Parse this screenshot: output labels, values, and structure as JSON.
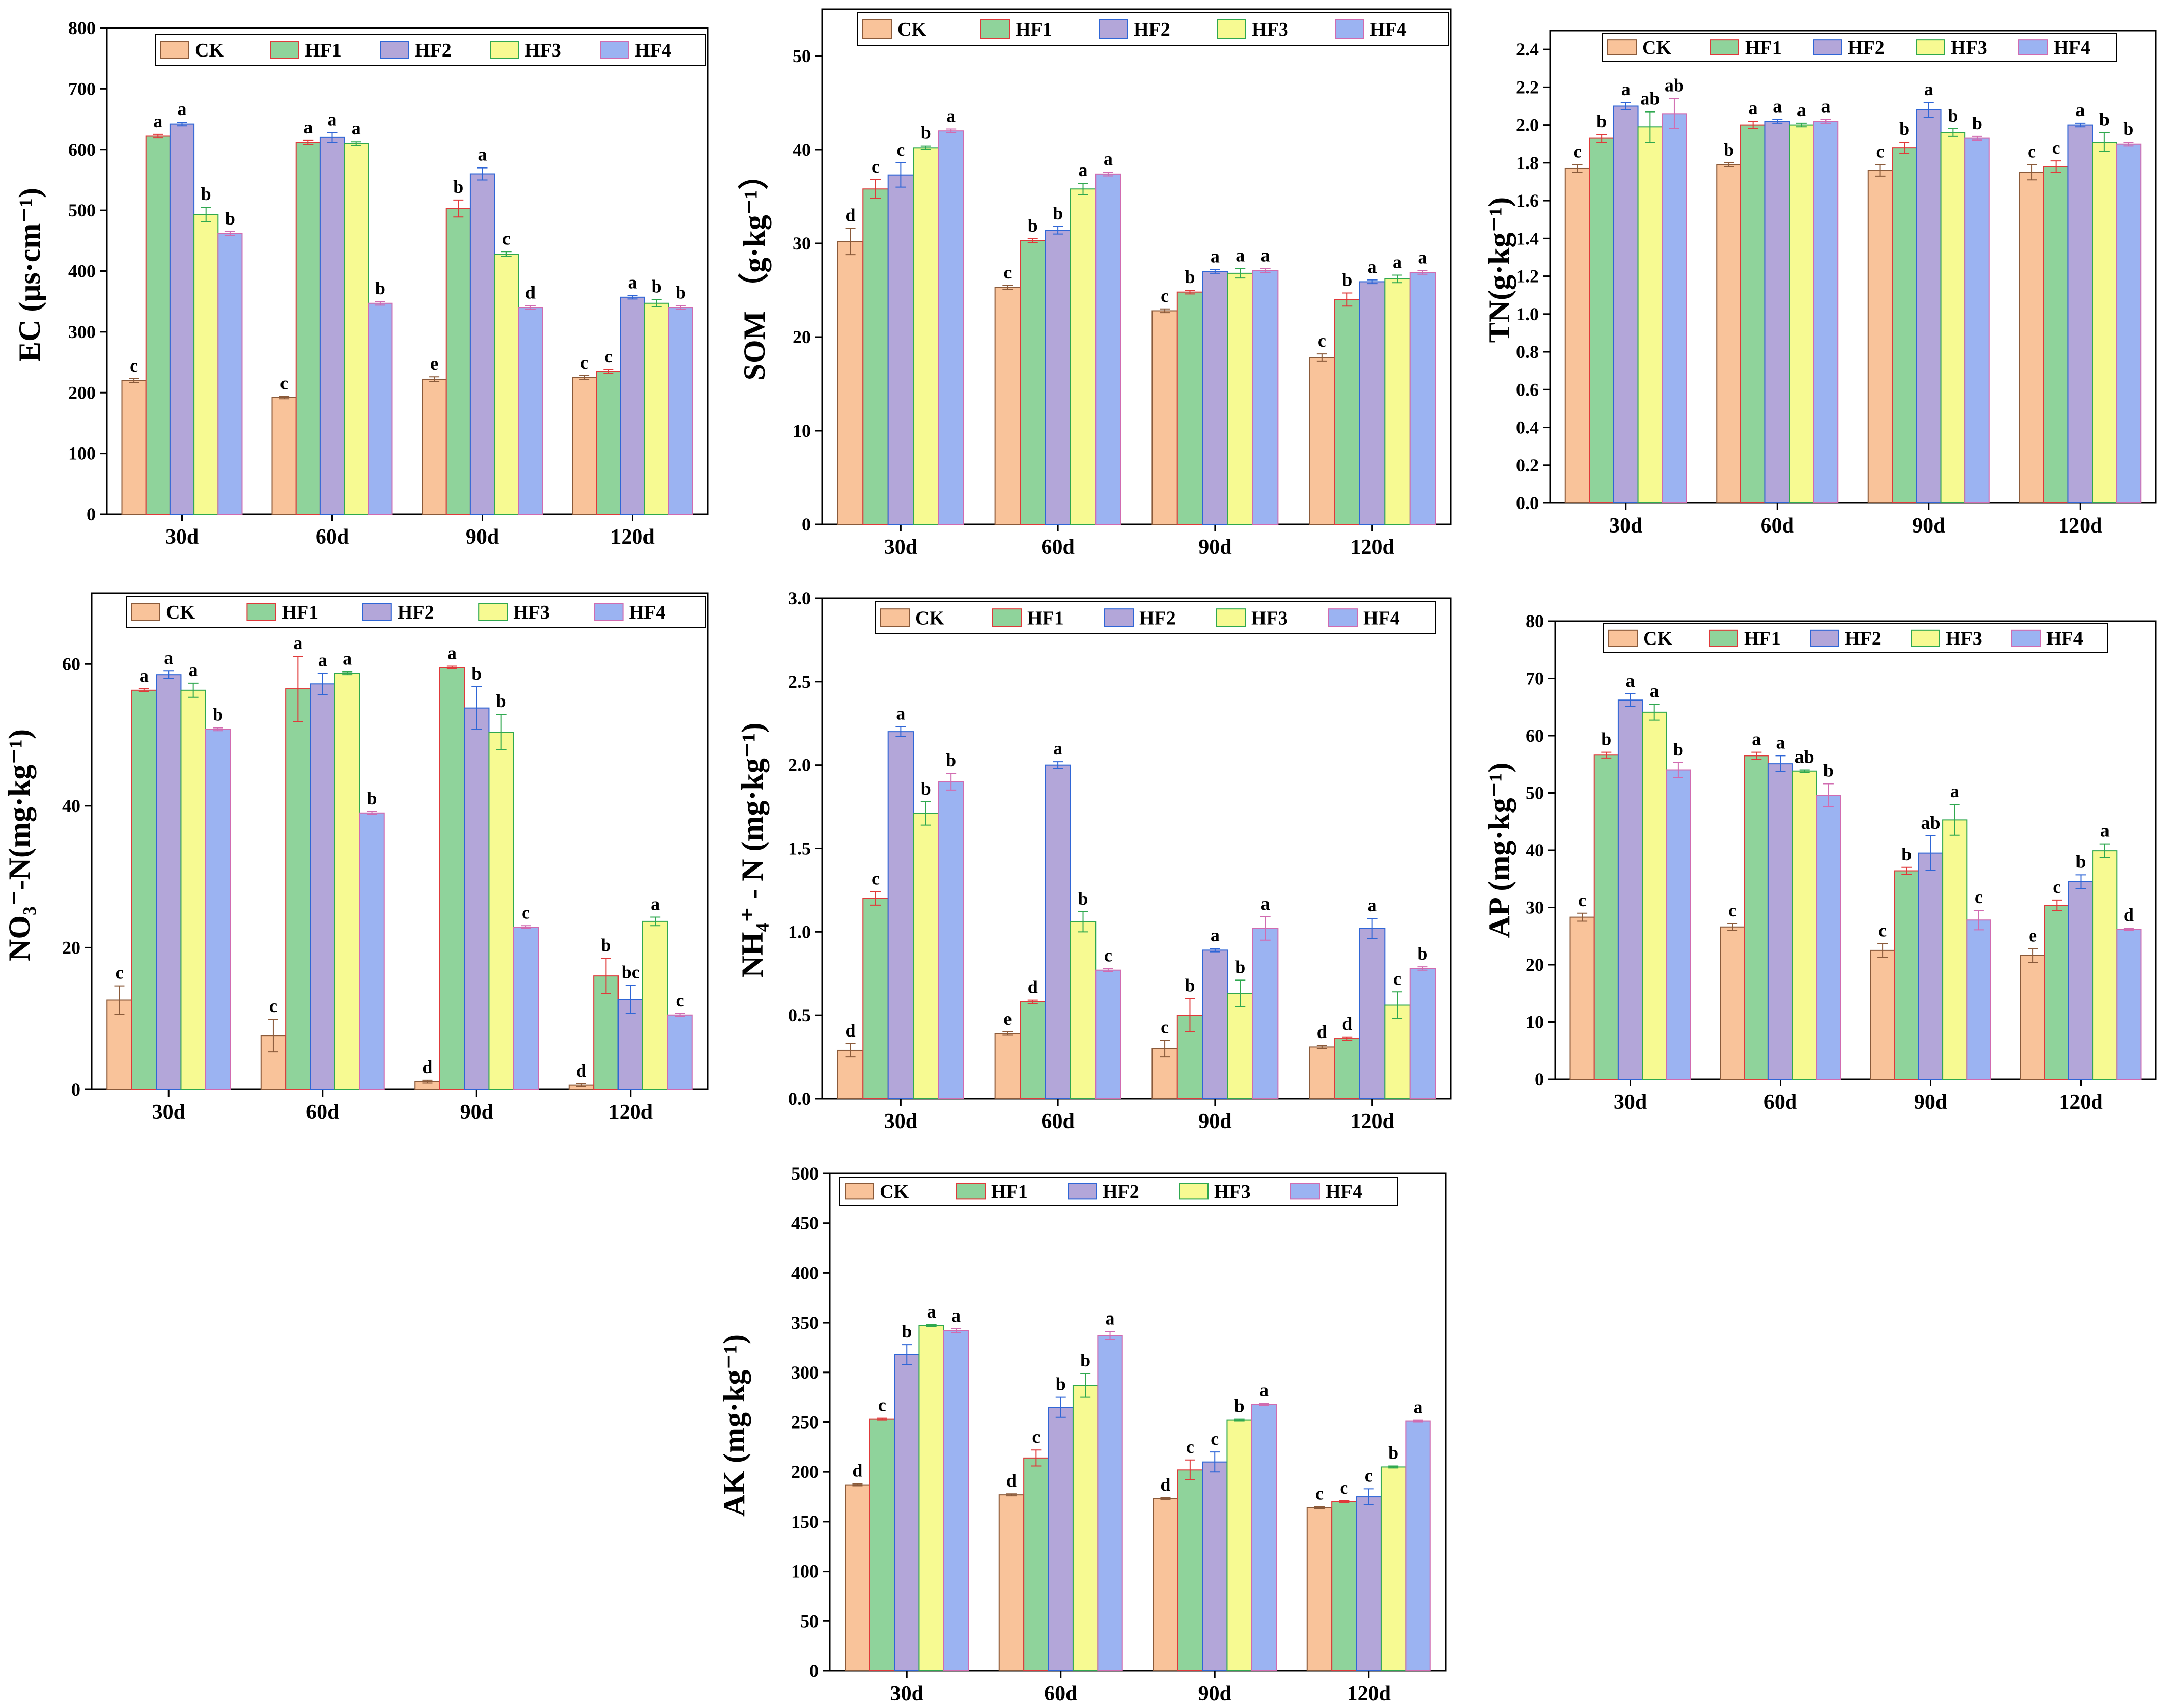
{
  "series_names": [
    "CK",
    "HF1",
    "HF2",
    "HF3",
    "HF4"
  ],
  "series_colors": {
    "fill": [
      "#F9C39A",
      "#8FD39B",
      "#B3A6D9",
      "#F7FA92",
      "#9BB3F2"
    ],
    "edge": [
      "#8a5a3a",
      "#E0393A",
      "#2F66D6",
      "#2FA84F",
      "#D16BB0"
    ]
  },
  "chart_data": [
    {
      "type": "bar",
      "id": "ec",
      "title": "",
      "ylabel": "EC (μs·cm⁻¹)",
      "categories": [
        "30d",
        "60d",
        "90d",
        "120d"
      ],
      "ylim": [
        0,
        800
      ],
      "yticks": [
        0,
        100,
        200,
        300,
        400,
        500,
        600,
        700,
        800
      ],
      "series": [
        {
          "name": "CK",
          "values": [
            220,
            192,
            222,
            225
          ],
          "errors": [
            3,
            2,
            4,
            3
          ],
          "sig": [
            "c",
            "c",
            "e",
            "c"
          ]
        },
        {
          "name": "HF1",
          "values": [
            622,
            612,
            503,
            235
          ],
          "errors": [
            3,
            3,
            14,
            3
          ],
          "sig": [
            "a",
            "a",
            "b",
            "c"
          ]
        },
        {
          "name": "HF2",
          "values": [
            642,
            620,
            560,
            357
          ],
          "errors": [
            3,
            8,
            10,
            3
          ],
          "sig": [
            "a",
            "a",
            "a",
            "a"
          ]
        },
        {
          "name": "HF3",
          "values": [
            493,
            610,
            428,
            347
          ],
          "errors": [
            12,
            3,
            4,
            6
          ],
          "sig": [
            "b",
            "a",
            "c",
            "b"
          ]
        },
        {
          "name": "HF4",
          "values": [
            462,
            347,
            340,
            340
          ],
          "errors": [
            3,
            3,
            3,
            3
          ],
          "sig": [
            "b",
            "b",
            "d",
            "b"
          ]
        }
      ]
    },
    {
      "type": "bar",
      "id": "som",
      "title": "",
      "ylabel": "SOM （g·kg⁻¹）",
      "categories": [
        "30d",
        "60d",
        "90d",
        "120d"
      ],
      "ylim": [
        0,
        55
      ],
      "yticks": [
        0,
        10,
        20,
        30,
        40,
        50
      ],
      "series": [
        {
          "name": "CK",
          "values": [
            30.2,
            25.3,
            22.8,
            17.8
          ],
          "errors": [
            1.4,
            0.2,
            0.2,
            0.4
          ],
          "sig": [
            "d",
            "c",
            "c",
            "c"
          ]
        },
        {
          "name": "HF1",
          "values": [
            35.8,
            30.3,
            24.8,
            24.0
          ],
          "errors": [
            1.0,
            0.2,
            0.2,
            0.7
          ],
          "sig": [
            "c",
            "b",
            "b",
            "b"
          ]
        },
        {
          "name": "HF2",
          "values": [
            37.3,
            31.4,
            27.0,
            25.9
          ],
          "errors": [
            1.3,
            0.4,
            0.2,
            0.2
          ],
          "sig": [
            "c",
            "b",
            "a",
            "a"
          ]
        },
        {
          "name": "HF3",
          "values": [
            40.2,
            35.8,
            26.8,
            26.2
          ],
          "errors": [
            0.2,
            0.6,
            0.5,
            0.4
          ],
          "sig": [
            "b",
            "a",
            "a",
            "a"
          ]
        },
        {
          "name": "HF4",
          "values": [
            42.0,
            37.4,
            27.1,
            26.9
          ],
          "errors": [
            0.2,
            0.2,
            0.2,
            0.2
          ],
          "sig": [
            "a",
            "a",
            "a",
            "a"
          ]
        }
      ]
    },
    {
      "type": "bar",
      "id": "tn",
      "title": "",
      "ylabel": "TN(g·kg⁻¹)",
      "categories": [
        "30d",
        "60d",
        "90d",
        "120d"
      ],
      "ylim": [
        0,
        2.5
      ],
      "yticks": [
        0.0,
        0.2,
        0.4,
        0.6,
        0.8,
        1.0,
        1.2,
        1.4,
        1.6,
        1.8,
        2.0,
        2.2,
        2.4
      ],
      "series": [
        {
          "name": "CK",
          "values": [
            1.77,
            1.79,
            1.76,
            1.75
          ],
          "errors": [
            0.02,
            0.01,
            0.03,
            0.04
          ],
          "sig": [
            "c",
            "b",
            "c",
            "c"
          ]
        },
        {
          "name": "HF1",
          "values": [
            1.93,
            2.0,
            1.88,
            1.78
          ],
          "errors": [
            0.02,
            0.02,
            0.03,
            0.03
          ],
          "sig": [
            "b",
            "a",
            "b",
            "c"
          ]
        },
        {
          "name": "HF2",
          "values": [
            2.1,
            2.02,
            2.08,
            2.0
          ],
          "errors": [
            0.02,
            0.01,
            0.04,
            0.01
          ],
          "sig": [
            "a",
            "a",
            "a",
            "a"
          ]
        },
        {
          "name": "HF3",
          "values": [
            1.99,
            2.0,
            1.96,
            1.91
          ],
          "errors": [
            0.08,
            0.01,
            0.02,
            0.05
          ],
          "sig": [
            "ab",
            "a",
            "b",
            "b"
          ]
        },
        {
          "name": "HF4",
          "values": [
            2.06,
            2.02,
            1.93,
            1.9
          ],
          "errors": [
            0.08,
            0.01,
            0.01,
            0.01
          ],
          "sig": [
            "ab",
            "a",
            "b",
            "b"
          ]
        }
      ]
    },
    {
      "type": "bar",
      "id": "no3",
      "title": "",
      "ylabel": "NO₃⁻-N(mg·kg⁻¹)",
      "categories": [
        "30d",
        "60d",
        "90d",
        "120d"
      ],
      "ylim": [
        0,
        70
      ],
      "yticks": [
        0,
        20,
        40,
        60
      ],
      "series": [
        {
          "name": "CK",
          "values": [
            12.6,
            7.6,
            1.1,
            0.6
          ],
          "errors": [
            2.0,
            2.3,
            0.2,
            0.2
          ],
          "sig": [
            "c",
            "c",
            "d",
            "d"
          ]
        },
        {
          "name": "HF1",
          "values": [
            56.3,
            56.5,
            59.5,
            16.0
          ],
          "errors": [
            0.2,
            4.6,
            0.2,
            2.5
          ],
          "sig": [
            "a",
            "a",
            "a",
            "b"
          ]
        },
        {
          "name": "HF2",
          "values": [
            58.5,
            57.2,
            53.8,
            12.7
          ],
          "errors": [
            0.5,
            1.5,
            3.0,
            2.0
          ],
          "sig": [
            "a",
            "a",
            "b",
            "bc"
          ]
        },
        {
          "name": "HF3",
          "values": [
            56.3,
            58.7,
            50.4,
            23.7
          ],
          "errors": [
            1.0,
            0.2,
            2.5,
            0.6
          ],
          "sig": [
            "a",
            "a",
            "b",
            "a"
          ]
        },
        {
          "name": "HF4",
          "values": [
            50.8,
            39.0,
            22.9,
            10.5
          ],
          "errors": [
            0.2,
            0.2,
            0.2,
            0.2
          ],
          "sig": [
            "b",
            "b",
            "c",
            "c"
          ]
        }
      ]
    },
    {
      "type": "bar",
      "id": "nh4",
      "title": "",
      "ylabel": "NH₄⁺ - N (mg·kg⁻¹)",
      "categories": [
        "30d",
        "60d",
        "90d",
        "120d"
      ],
      "ylim": [
        0,
        3.0
      ],
      "yticks": [
        0.0,
        0.5,
        1.0,
        1.5,
        2.0,
        2.5,
        3.0
      ],
      "series": [
        {
          "name": "CK",
          "values": [
            0.29,
            0.39,
            0.3,
            0.31
          ],
          "errors": [
            0.04,
            0.01,
            0.05,
            0.01
          ],
          "sig": [
            "d",
            "e",
            "c",
            "d"
          ]
        },
        {
          "name": "HF1",
          "values": [
            1.2,
            0.58,
            0.5,
            0.36
          ],
          "errors": [
            0.04,
            0.01,
            0.1,
            0.01
          ],
          "sig": [
            "c",
            "d",
            "b",
            "d"
          ]
        },
        {
          "name": "HF2",
          "values": [
            2.2,
            2.0,
            0.89,
            1.02
          ],
          "errors": [
            0.03,
            0.02,
            0.01,
            0.06
          ],
          "sig": [
            "a",
            "a",
            "a",
            "a"
          ]
        },
        {
          "name": "HF3",
          "values": [
            1.71,
            1.06,
            0.63,
            0.56
          ],
          "errors": [
            0.07,
            0.06,
            0.08,
            0.08
          ],
          "sig": [
            "b",
            "b",
            "b",
            "c"
          ]
        },
        {
          "name": "HF4",
          "values": [
            1.9,
            0.77,
            1.02,
            0.78
          ],
          "errors": [
            0.05,
            0.01,
            0.07,
            0.01
          ],
          "sig": [
            "b",
            "c",
            "a",
            "b"
          ]
        }
      ]
    },
    {
      "type": "bar",
      "id": "ap",
      "title": "",
      "ylabel": "AP (mg·kg⁻¹)",
      "categories": [
        "30d",
        "60d",
        "90d",
        "120d"
      ],
      "ylim": [
        0,
        80
      ],
      "yticks": [
        0,
        10,
        20,
        30,
        40,
        50,
        60,
        70,
        80
      ],
      "series": [
        {
          "name": "CK",
          "values": [
            28.3,
            26.6,
            22.5,
            21.6
          ],
          "errors": [
            0.7,
            0.6,
            1.2,
            1.2
          ],
          "sig": [
            "c",
            "c",
            "c",
            "e"
          ]
        },
        {
          "name": "HF1",
          "values": [
            56.6,
            56.5,
            36.4,
            30.4
          ],
          "errors": [
            0.5,
            0.6,
            0.6,
            0.9
          ],
          "sig": [
            "b",
            "a",
            "b",
            "c"
          ]
        },
        {
          "name": "HF2",
          "values": [
            66.2,
            55.1,
            39.5,
            34.5
          ],
          "errors": [
            1.1,
            1.4,
            3.0,
            1.2
          ],
          "sig": [
            "a",
            "a",
            "ab",
            "b"
          ]
        },
        {
          "name": "HF3",
          "values": [
            64.1,
            53.8,
            45.3,
            39.9
          ],
          "errors": [
            1.4,
            0.2,
            2.7,
            1.2
          ],
          "sig": [
            "a",
            "ab",
            "a",
            "a"
          ]
        },
        {
          "name": "HF4",
          "values": [
            54.0,
            49.6,
            27.8,
            26.2
          ],
          "errors": [
            1.3,
            2.0,
            1.7,
            0.2
          ],
          "sig": [
            "b",
            "b",
            "c",
            "d"
          ]
        }
      ]
    },
    {
      "type": "bar",
      "id": "ak",
      "title": "",
      "ylabel": "AK (mg·kg⁻¹)",
      "categories": [
        "30d",
        "60d",
        "90d",
        "120d"
      ],
      "ylim": [
        0,
        500
      ],
      "yticks": [
        0,
        50,
        100,
        150,
        200,
        250,
        300,
        350,
        400,
        450,
        500
      ],
      "series": [
        {
          "name": "CK",
          "values": [
            187,
            177,
            173,
            164
          ],
          "errors": [
            1,
            1,
            1,
            1
          ],
          "sig": [
            "d",
            "d",
            "d",
            "c"
          ]
        },
        {
          "name": "HF1",
          "values": [
            253,
            214,
            202,
            170
          ],
          "errors": [
            1,
            8,
            10,
            1
          ],
          "sig": [
            "c",
            "c",
            "c",
            "c"
          ]
        },
        {
          "name": "HF2",
          "values": [
            318,
            265,
            210,
            175
          ],
          "errors": [
            10,
            10,
            10,
            8
          ],
          "sig": [
            "b",
            "b",
            "c",
            "c"
          ]
        },
        {
          "name": "HF3",
          "values": [
            347,
            287,
            252,
            205
          ],
          "errors": [
            1,
            12,
            1,
            1
          ],
          "sig": [
            "a",
            "b",
            "b",
            "b"
          ]
        },
        {
          "name": "HF4",
          "values": [
            342,
            337,
            268,
            251
          ],
          "errors": [
            2,
            4,
            1,
            1
          ],
          "sig": [
            "a",
            "a",
            "a",
            "a"
          ]
        }
      ]
    }
  ]
}
